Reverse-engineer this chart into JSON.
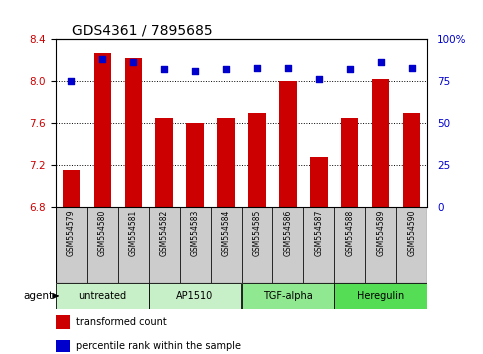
{
  "title": "GDS4361 / 7895685",
  "samples": [
    "GSM554579",
    "GSM554580",
    "GSM554581",
    "GSM554582",
    "GSM554583",
    "GSM554584",
    "GSM554585",
    "GSM554586",
    "GSM554587",
    "GSM554588",
    "GSM554589",
    "GSM554590"
  ],
  "bar_values": [
    7.15,
    8.27,
    8.22,
    7.65,
    7.6,
    7.65,
    7.7,
    8.0,
    7.28,
    7.65,
    8.02,
    7.7
  ],
  "percentile_values": [
    75,
    88,
    86,
    82,
    81,
    82,
    83,
    83,
    76,
    82,
    86,
    83
  ],
  "ylim_left": [
    6.8,
    8.4
  ],
  "ylim_right": [
    0,
    100
  ],
  "yticks_left": [
    6.8,
    7.2,
    7.6,
    8.0,
    8.4
  ],
  "yticks_right": [
    0,
    25,
    50,
    75,
    100
  ],
  "ytick_labels_right": [
    "0",
    "25",
    "50",
    "75",
    "100%"
  ],
  "bar_color": "#cc0000",
  "dot_color": "#0000cc",
  "agent_groups": [
    {
      "label": "untreated",
      "start": 0,
      "end": 3,
      "color": "#c8f0c8"
    },
    {
      "label": "AP1510",
      "start": 3,
      "end": 6,
      "color": "#c8f0c8"
    },
    {
      "label": "TGF-alpha",
      "start": 6,
      "end": 9,
      "color": "#90e890"
    },
    {
      "label": "Heregulin",
      "start": 9,
      "end": 12,
      "color": "#55dd55"
    }
  ],
  "legend_bar_label": "transformed count",
  "legend_dot_label": "percentile rank within the sample",
  "xlabel_agent": "agent",
  "background_color": "#ffffff",
  "sample_label_bg": "#cccccc",
  "bar_color_red": "#cc0000",
  "dot_color_blue": "#0000cc",
  "title_fontsize": 10,
  "tick_fontsize": 7.5,
  "sample_fontsize": 5.5,
  "agent_fontsize": 7,
  "legend_fontsize": 7
}
